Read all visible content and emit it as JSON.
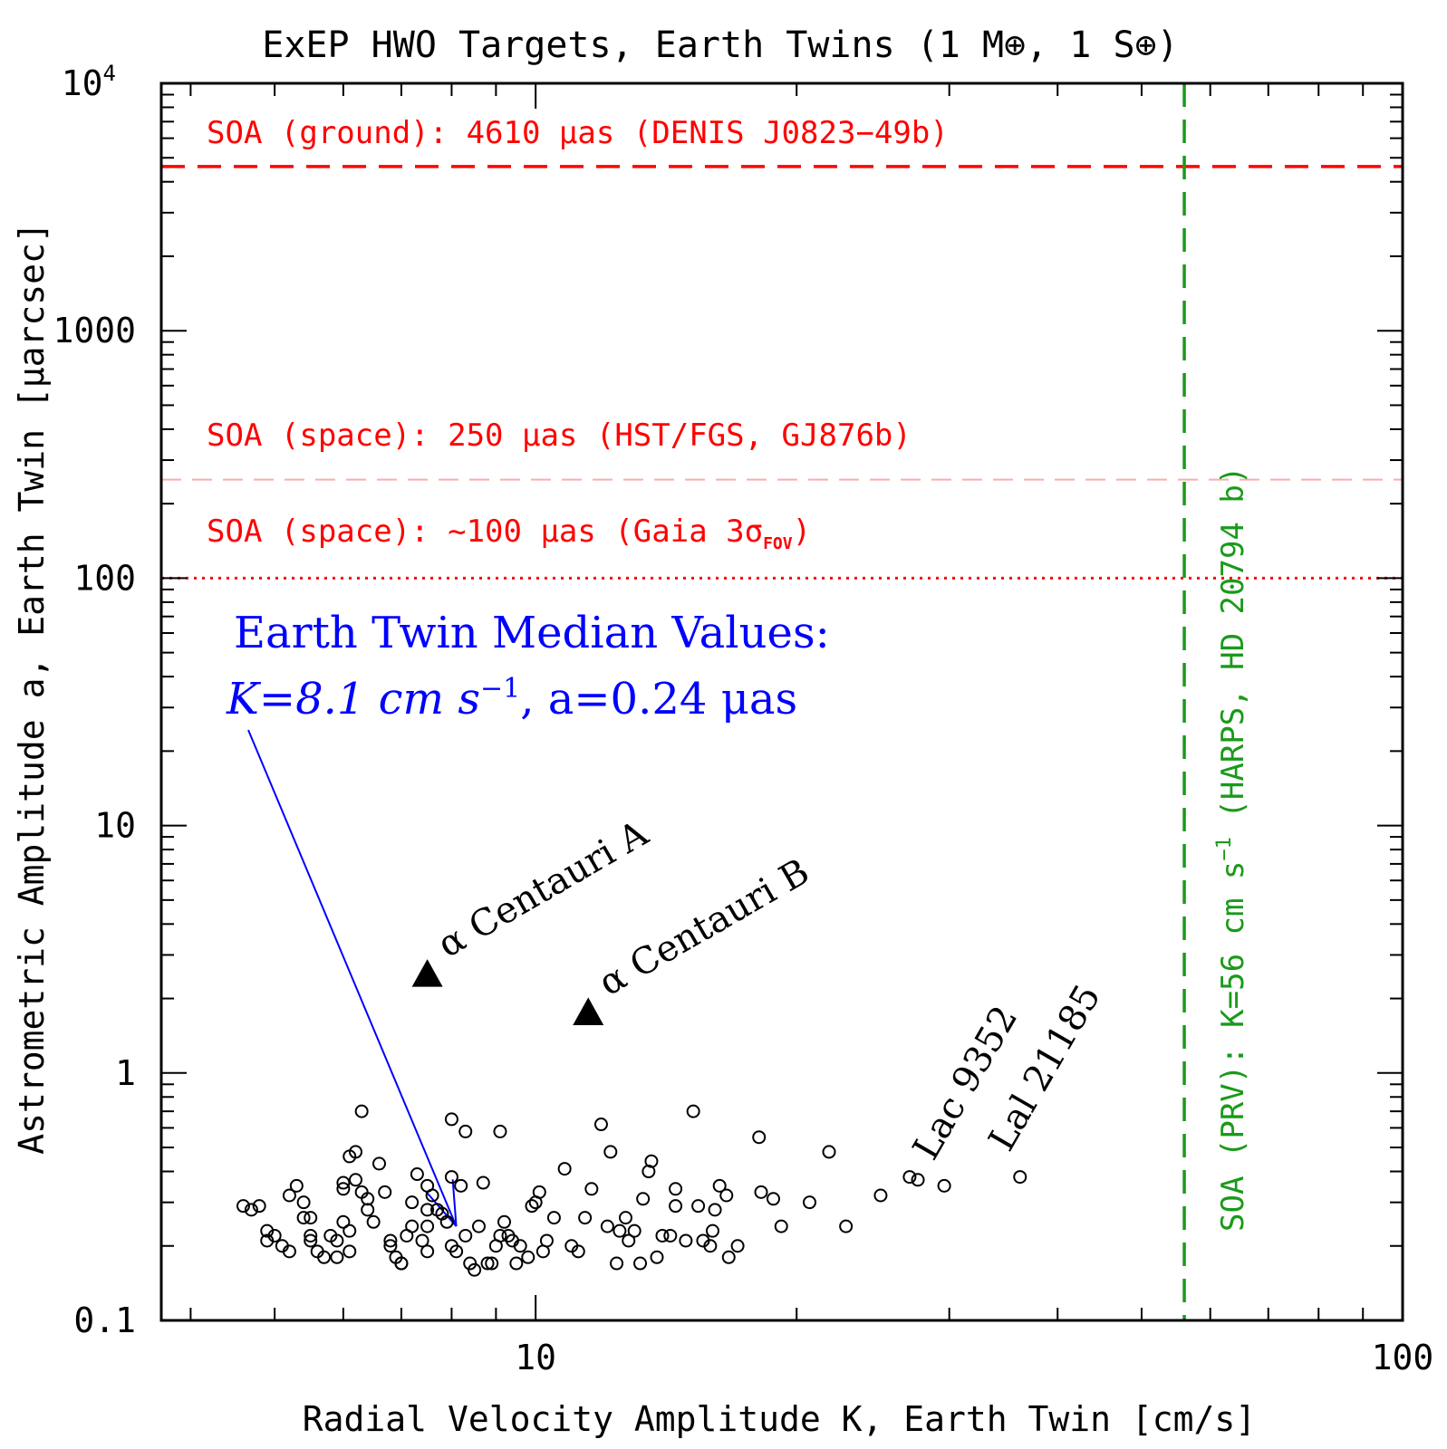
{
  "chart_data": {
    "type": "scatter",
    "title": "ExEP HWO Targets, Earth Twins (1 M⊕, 1 S⊕)",
    "xlabel": "Radial Velocity Amplitude K, Earth Twin [cm/s]",
    "ylabel": "Astrometric Amplitude a, Earth Twin [μarcsec]",
    "xscale": "log",
    "yscale": "log",
    "xlim": [
      3.7,
      100
    ],
    "ylim": [
      0.1,
      10000
    ],
    "x_tick_labels": [
      {
        "value": 10,
        "label": "10"
      },
      {
        "value": 100,
        "label": "100"
      }
    ],
    "y_tick_labels": [
      {
        "value": 0.1,
        "label": "0.1"
      },
      {
        "value": 1,
        "label": "1"
      },
      {
        "value": 10,
        "label": "10"
      },
      {
        "value": 100,
        "label": "100"
      },
      {
        "value": 1000,
        "label": "1000"
      },
      {
        "value": 10000,
        "label": "10",
        "exponent": "4"
      }
    ],
    "reference_lines": [
      {
        "orientation": "horizontal",
        "value": 4610,
        "style": "dashed",
        "color": "#ff0000",
        "label": "SOA (ground): 4610 μas (DENIS J0823−49b)"
      },
      {
        "orientation": "horizontal",
        "value": 250,
        "style": "dashed-light",
        "color": "#ffaaaa",
        "label": "SOA (space): 250 μas (HST/FGS, GJ876b)"
      },
      {
        "orientation": "horizontal",
        "value": 100,
        "style": "dotted",
        "color": "#ff0000",
        "label": "SOA (space): ~100 μas (Gaia 3σ",
        "label_sub": "FOV",
        "label_end": ")"
      },
      {
        "orientation": "vertical",
        "value": 56,
        "style": "dashed",
        "color": "#1a9a1a",
        "label": "SOA (PRV): K=56 cm s",
        "label_sup": "−1",
        "label_end": " (HARPS, HD 20794 b)"
      }
    ],
    "annotation": {
      "line1": "Earth Twin Median Values:",
      "k_text": "K=8.1 cm s",
      "k_sup": "−1",
      "a_text": ", a=0.24 μas",
      "color": "#0000ff",
      "median_point": {
        "x": 8.1,
        "y": 0.24
      }
    },
    "highlighted_points": [
      {
        "label": "α Centauri A",
        "x": 7.5,
        "y": 2.5,
        "marker": "triangle"
      },
      {
        "label": "α Centauri B",
        "x": 11.5,
        "y": 1.75,
        "marker": "triangle"
      }
    ],
    "labeled_points": [
      {
        "label": "Lac 9352",
        "x": 29.6,
        "y": 0.35
      },
      {
        "label": "Lal 21185",
        "x": 36.2,
        "y": 0.38
      }
    ],
    "series": [
      {
        "name": "HWO targets",
        "marker": "open-circle",
        "points": [
          [
            4.6,
            0.29
          ],
          [
            4.7,
            0.28
          ],
          [
            4.8,
            0.29
          ],
          [
            4.9,
            0.23
          ],
          [
            4.9,
            0.21
          ],
          [
            5.0,
            0.22
          ],
          [
            5.1,
            0.2
          ],
          [
            5.2,
            0.19
          ],
          [
            5.2,
            0.32
          ],
          [
            5.3,
            0.35
          ],
          [
            5.4,
            0.3
          ],
          [
            5.4,
            0.26
          ],
          [
            5.5,
            0.26
          ],
          [
            5.5,
            0.22
          ],
          [
            5.5,
            0.21
          ],
          [
            5.6,
            0.19
          ],
          [
            5.7,
            0.18
          ],
          [
            5.8,
            0.22
          ],
          [
            5.9,
            0.21
          ],
          [
            5.9,
            0.18
          ],
          [
            6.0,
            0.36
          ],
          [
            6.0,
            0.34
          ],
          [
            6.0,
            0.25
          ],
          [
            6.1,
            0.23
          ],
          [
            6.1,
            0.19
          ],
          [
            6.1,
            0.46
          ],
          [
            6.2,
            0.48
          ],
          [
            6.2,
            0.37
          ],
          [
            6.3,
            0.33
          ],
          [
            6.3,
            0.7
          ],
          [
            6.4,
            0.31
          ],
          [
            6.4,
            0.28
          ],
          [
            6.5,
            0.25
          ],
          [
            6.6,
            0.43
          ],
          [
            6.7,
            0.33
          ],
          [
            6.8,
            0.21
          ],
          [
            6.8,
            0.2
          ],
          [
            6.9,
            0.18
          ],
          [
            7.0,
            0.17
          ],
          [
            7.0,
            0.17
          ],
          [
            7.1,
            0.22
          ],
          [
            7.2,
            0.24
          ],
          [
            7.2,
            0.3
          ],
          [
            7.3,
            0.39
          ],
          [
            7.4,
            0.21
          ],
          [
            7.5,
            0.28
          ],
          [
            7.5,
            0.35
          ],
          [
            7.5,
            0.24
          ],
          [
            7.5,
            0.19
          ],
          [
            7.6,
            0.32
          ],
          [
            7.7,
            0.28
          ],
          [
            7.8,
            0.27
          ],
          [
            7.9,
            0.25
          ],
          [
            8.0,
            0.65
          ],
          [
            8.0,
            0.38
          ],
          [
            8.0,
            0.2
          ],
          [
            8.1,
            0.19
          ],
          [
            8.2,
            0.35
          ],
          [
            8.3,
            0.22
          ],
          [
            8.3,
            0.58
          ],
          [
            8.4,
            0.17
          ],
          [
            8.5,
            0.16
          ],
          [
            8.6,
            0.24
          ],
          [
            8.7,
            0.36
          ],
          [
            8.8,
            0.17
          ],
          [
            8.9,
            0.17
          ],
          [
            9.0,
            0.2
          ],
          [
            9.1,
            0.22
          ],
          [
            9.1,
            0.58
          ],
          [
            9.2,
            0.25
          ],
          [
            9.3,
            0.22
          ],
          [
            9.4,
            0.21
          ],
          [
            9.5,
            0.17
          ],
          [
            9.6,
            0.2
          ],
          [
            9.8,
            0.18
          ],
          [
            9.9,
            0.29
          ],
          [
            10.0,
            0.3
          ],
          [
            10.1,
            0.33
          ],
          [
            10.2,
            0.19
          ],
          [
            10.3,
            0.21
          ],
          [
            10.5,
            0.26
          ],
          [
            10.8,
            0.41
          ],
          [
            11.0,
            0.2
          ],
          [
            11.2,
            0.19
          ],
          [
            11.4,
            0.26
          ],
          [
            11.6,
            0.34
          ],
          [
            11.9,
            0.62
          ],
          [
            12.1,
            0.24
          ],
          [
            12.2,
            0.48
          ],
          [
            12.4,
            0.17
          ],
          [
            12.5,
            0.23
          ],
          [
            12.7,
            0.26
          ],
          [
            12.8,
            0.21
          ],
          [
            13.0,
            0.23
          ],
          [
            13.2,
            0.17
          ],
          [
            13.3,
            0.31
          ],
          [
            13.5,
            0.4
          ],
          [
            13.6,
            0.44
          ],
          [
            13.8,
            0.18
          ],
          [
            14.0,
            0.22
          ],
          [
            14.3,
            0.22
          ],
          [
            14.5,
            0.29
          ],
          [
            14.5,
            0.34
          ],
          [
            14.9,
            0.21
          ],
          [
            15.2,
            0.7
          ],
          [
            15.4,
            0.29
          ],
          [
            15.6,
            0.21
          ],
          [
            15.9,
            0.2
          ],
          [
            16.0,
            0.23
          ],
          [
            16.1,
            0.28
          ],
          [
            16.3,
            0.35
          ],
          [
            16.6,
            0.32
          ],
          [
            16.7,
            0.18
          ],
          [
            17.1,
            0.2
          ],
          [
            18.1,
            0.55
          ],
          [
            18.2,
            0.33
          ],
          [
            18.8,
            0.31
          ],
          [
            19.2,
            0.24
          ],
          [
            20.7,
            0.3
          ],
          [
            21.8,
            0.48
          ],
          [
            22.8,
            0.24
          ],
          [
            25.0,
            0.32
          ],
          [
            27.0,
            0.38
          ],
          [
            27.6,
            0.37
          ],
          [
            29.6,
            0.35
          ],
          [
            36.2,
            0.38
          ]
        ]
      }
    ]
  }
}
